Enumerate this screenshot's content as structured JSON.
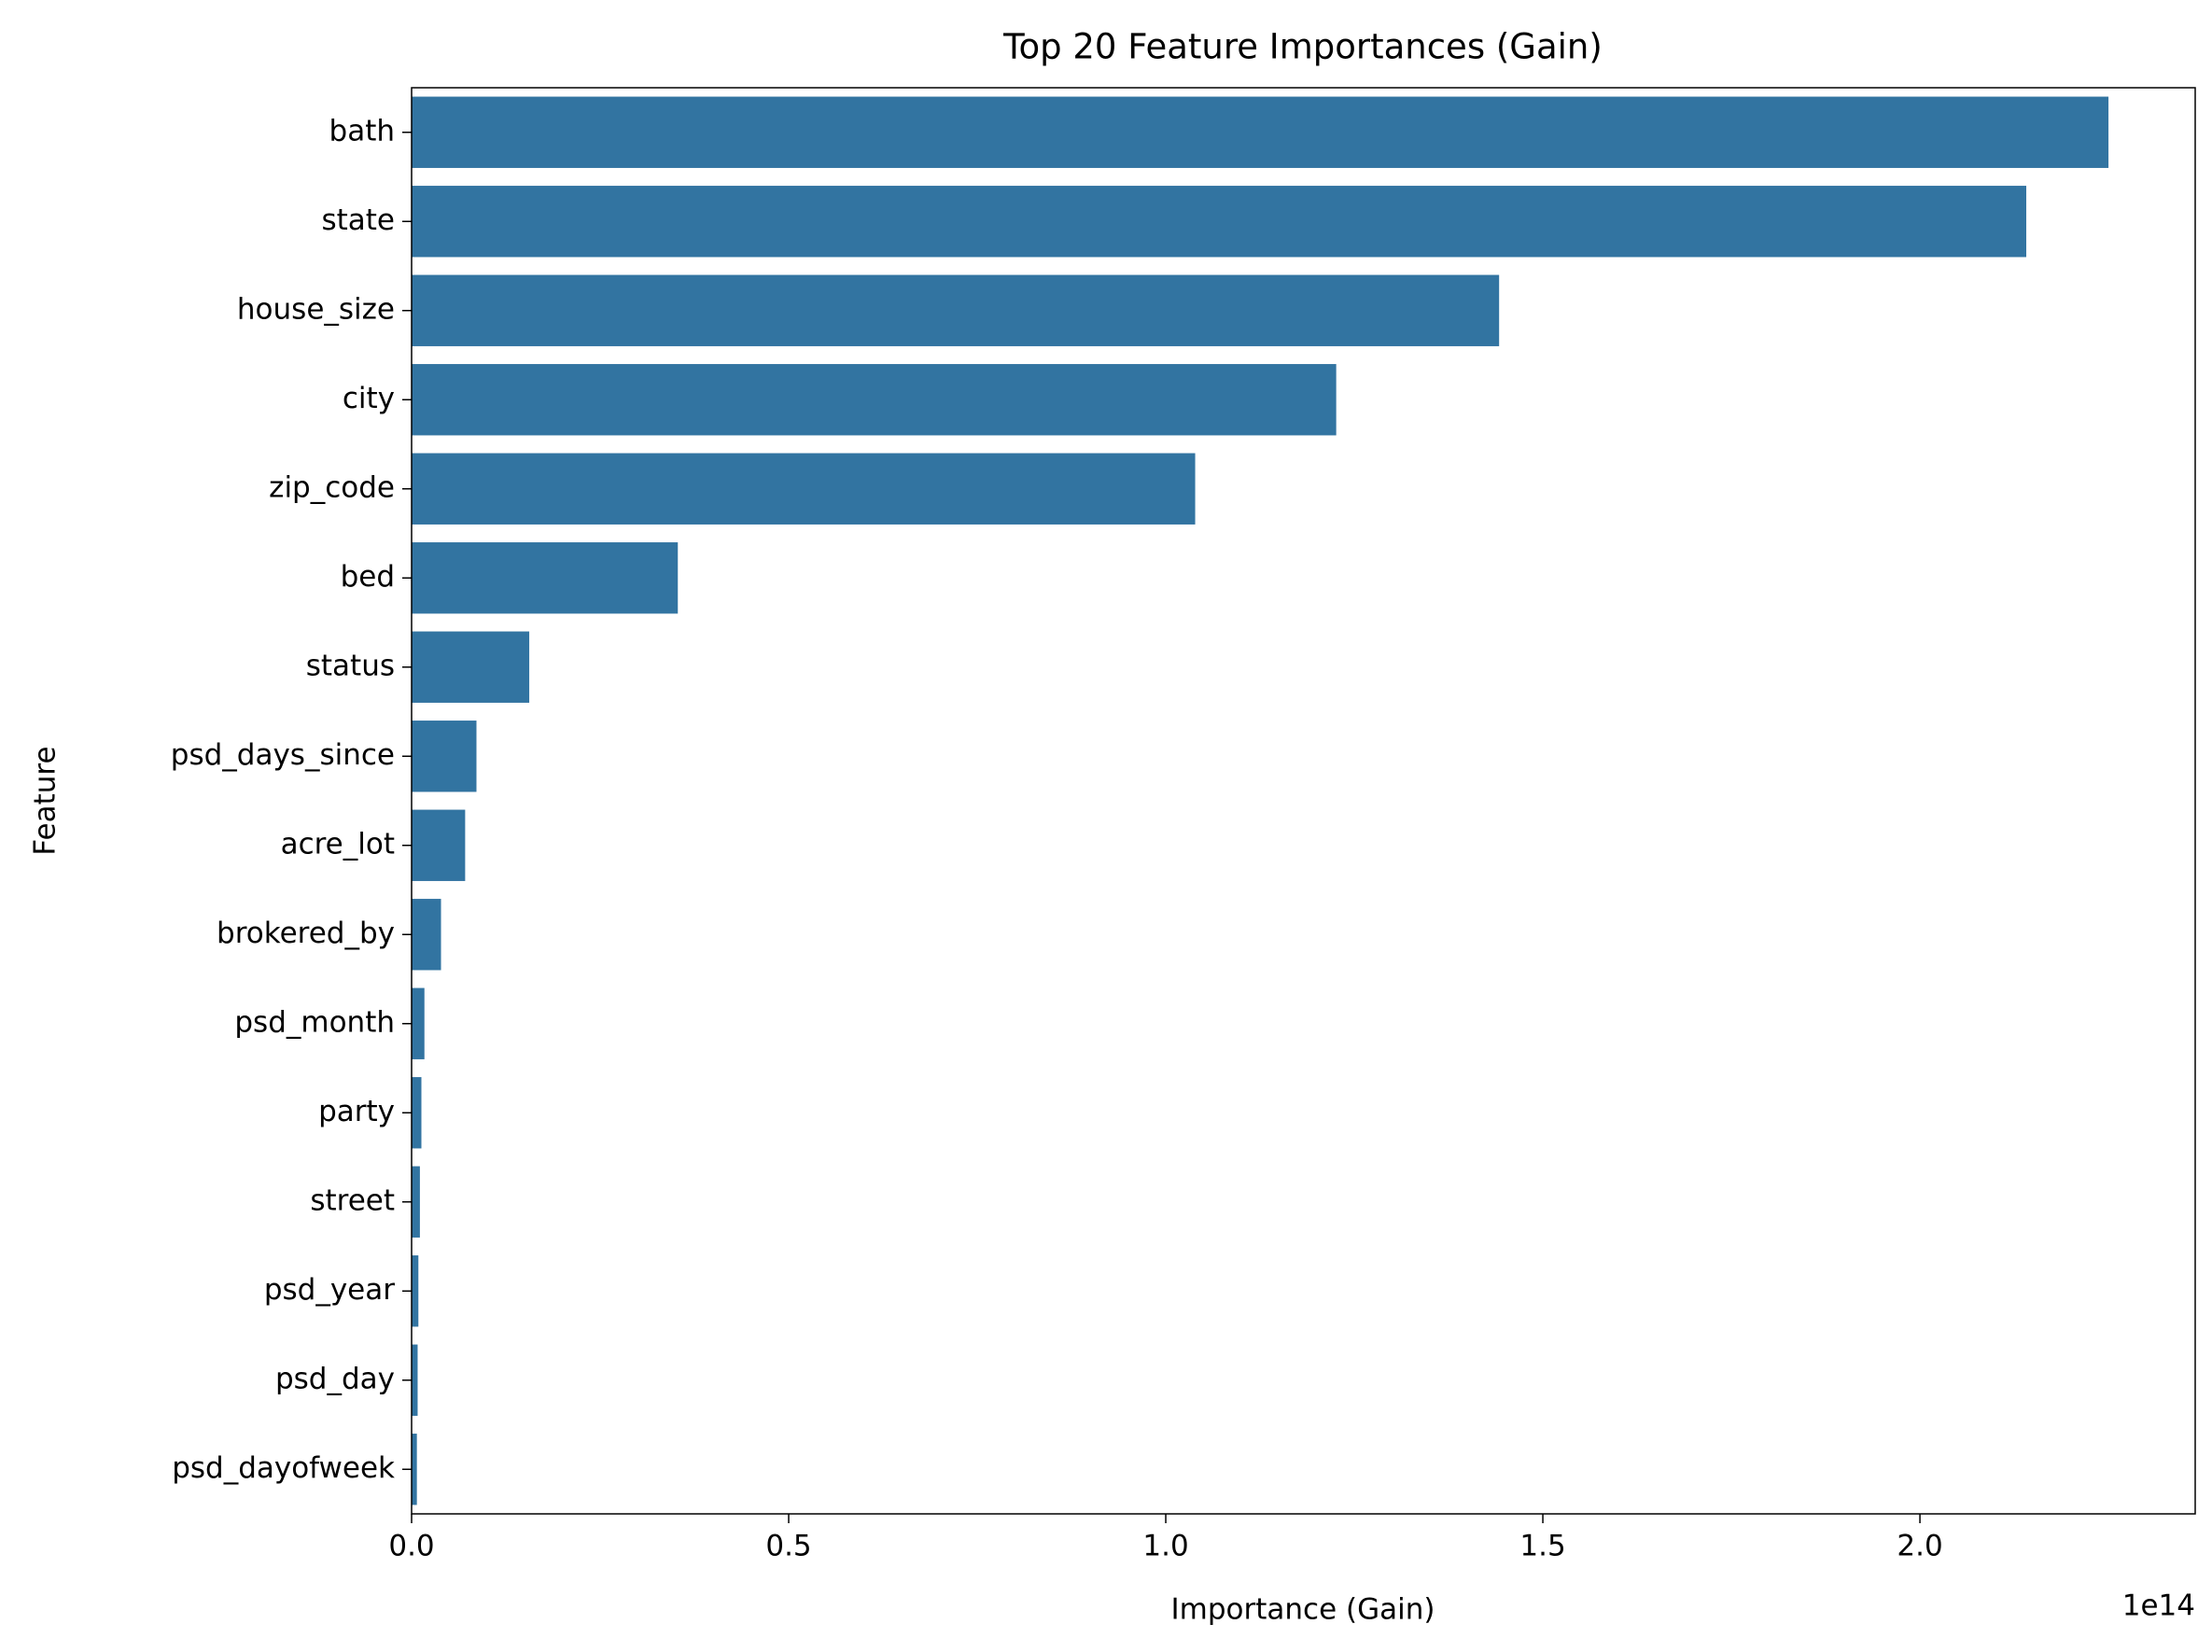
{
  "chart_data": {
    "type": "barh",
    "title": "Top 20 Feature Importances (Gain)",
    "x_label": "Importance (Gain)",
    "y_label": "Feature",
    "x_offset_label": "1e14",
    "categories": [
      "bath",
      "state",
      "house_size",
      "city",
      "zip_code",
      "bed",
      "status",
      "psd_days_since",
      "acre_lot",
      "brokered_by",
      "psd_month",
      "party",
      "street",
      "psd_year",
      "psd_day",
      "psd_dayofweek"
    ],
    "values": [
      2.25,
      2.141,
      1.442,
      1.226,
      1.039,
      0.353,
      0.156,
      0.086,
      0.071,
      0.039,
      0.017,
      0.013,
      0.011,
      0.009,
      0.008,
      0.007
    ],
    "color": "#3274a1",
    "xlim": [
      0,
      2.365
    ],
    "xticks": [
      {
        "value": 0,
        "label": "0.0"
      },
      0.5,
      {
        "value": 1,
        "label": "1.0"
      },
      1.5,
      {
        "value": 2,
        "label": "2.0"
      }
    ],
    "grid": false
  }
}
